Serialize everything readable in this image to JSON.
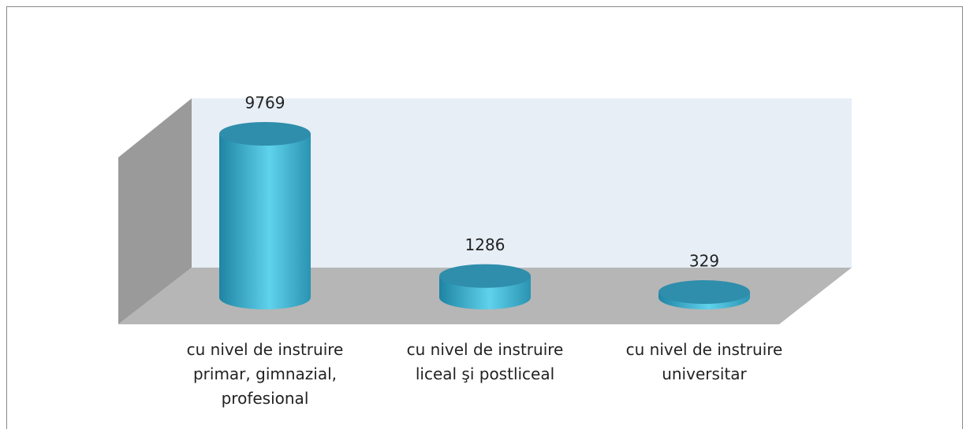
{
  "chart_data": {
    "type": "cylinder3d",
    "categories": [
      "cu nivel de instruire primar, gimnazial, profesional",
      "cu nivel de instruire liceal şi postliceal",
      "cu nivel de instruire universitar"
    ],
    "values": [
      9769,
      1286,
      329
    ],
    "color": "#3bb3d3"
  }
}
